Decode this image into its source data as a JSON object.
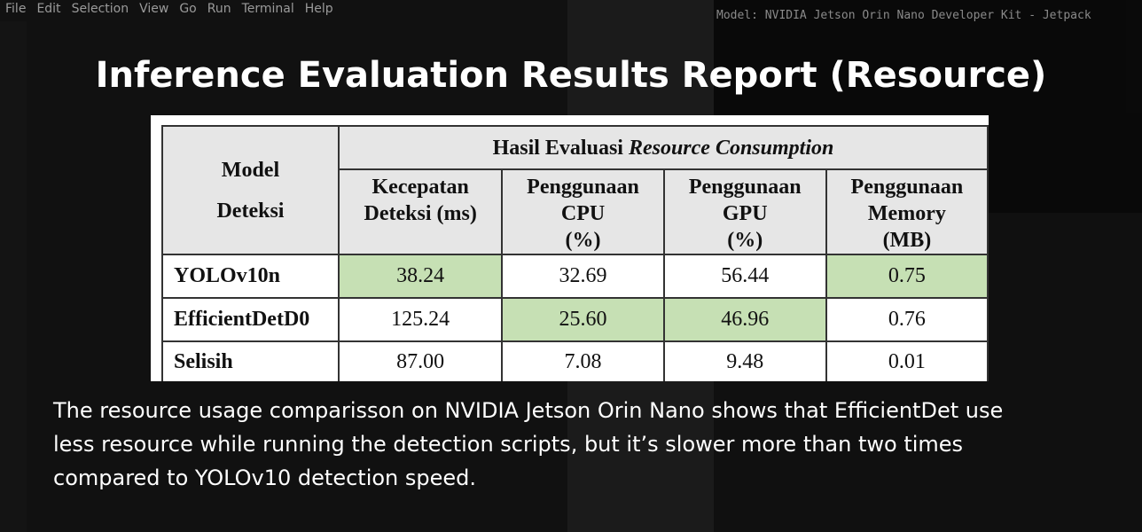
{
  "background": {
    "menu": [
      "File",
      "Edit",
      "Selection",
      "View",
      "Go",
      "Run",
      "Terminal",
      "Help"
    ],
    "terminal_title": "Model: NVIDIA Jetson Orin Nano Developer Kit - Jetpack"
  },
  "header": {
    "title": "Inference Evaluation Results Report (Resource)"
  },
  "table": {
    "corner": [
      "Model",
      "Deteksi"
    ],
    "group": {
      "plain": "Hasil Evaluasi",
      "italic": "Resource Consumption"
    },
    "columns": [
      [
        "Kecepatan",
        "Deteksi (ms)"
      ],
      [
        "Penggunaan",
        "CPU",
        "(%)"
      ],
      [
        "Penggunaan",
        "GPU",
        "(%)"
      ],
      [
        "Penggunaan",
        "Memory",
        "(MB)"
      ]
    ],
    "rows": [
      [
        "YOLOv10n",
        "38.24",
        "32.69",
        "56.44",
        "0.75"
      ],
      [
        "EfficientDetD0",
        "125.24",
        "25.60",
        "46.96",
        "0.76"
      ],
      [
        "Selisih",
        "87.00",
        "7.08",
        "9.48",
        "0.01"
      ]
    ],
    "highlight": [
      [
        true,
        false,
        false,
        true
      ],
      [
        false,
        true,
        true,
        false
      ],
      [
        false,
        false,
        false,
        false
      ]
    ],
    "highlight_color": "#c6e0b4"
  },
  "caption": {
    "lines": [
      "The resource usage comparisson on NVIDIA Jetson Orin Nano shows that EfficientDet use",
      "less resource while running the detection scripts, but it’s slower more than two times",
      "compared to YOLOv10 detection speed."
    ]
  }
}
